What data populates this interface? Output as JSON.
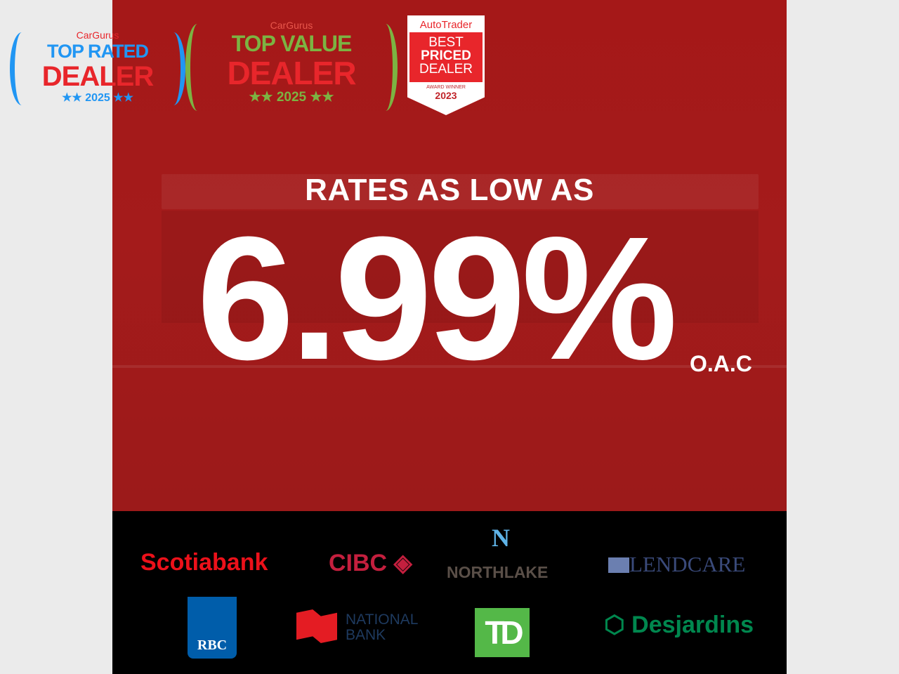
{
  "awards": {
    "cargurus_rated": {
      "brand": "CarGurus",
      "line1": "TOP RATED",
      "line2": "DEALER",
      "year": "★★ 2025 ★★",
      "colors": {
        "blue": "#2196f3",
        "red": "#e8262b"
      }
    },
    "cargurus_value": {
      "brand": "CarGurus",
      "line1": "TOP VALUE",
      "line2": "DEALER",
      "year": "★★ 2025 ★★",
      "colors": {
        "green": "#7cb342",
        "red": "#e8262b"
      }
    },
    "autotrader": {
      "brand": "AutoTrader",
      "line1": "BEST",
      "line2": "PRICED",
      "line3": "DEALER",
      "caption": "AWARD WINNER",
      "year": "2023"
    }
  },
  "promo": {
    "headline": "RATES AS LOW AS",
    "rate": "6.99%",
    "note": "O.A.C",
    "background_color": "#a51818"
  },
  "lenders": [
    {
      "name": "Scotiabank",
      "color": "#ec111a"
    },
    {
      "name": "CIBC",
      "color": "#c41f3e"
    },
    {
      "name": "NORTHLAKE",
      "color": "#5a4f48"
    },
    {
      "name": "LENDCARE",
      "color": "#2d3a6b"
    },
    {
      "name": "RBC",
      "color": "#005daa"
    },
    {
      "name": "NATIONAL BANK",
      "color": "#e41c23"
    },
    {
      "name": "TD",
      "color": "#54b848"
    },
    {
      "name": "Desjardins",
      "color": "#00874e"
    }
  ]
}
